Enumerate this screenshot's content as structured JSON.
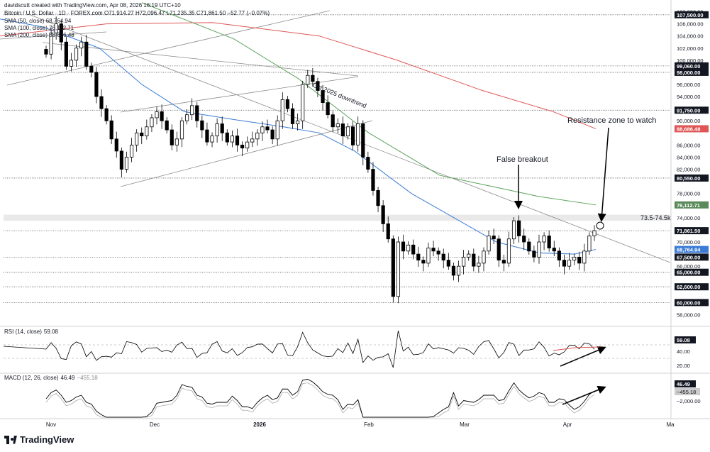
{
  "header": {
    "created_by": "davidscutt created with TradingView.com, Apr 08, 2026 16:19 UTC+10",
    "symbol_line": "Bitcoin / U.S. Dollar · 1D · FOREX.com",
    "ohlc": "O71,914.27 H72,096.47 L71,235.35 C71,861.50 −52.77 (−0.07%)",
    "sma50": "SMA (50, close) 68,764.94",
    "sma100": "SMA (100, close) 76,112.71",
    "sma200": "SMA (200, close) 88,686.48"
  },
  "colors": {
    "candle": "#000000",
    "sma50": "#3a7bd5",
    "sma100": "#5aa35a",
    "sma200": "#e05555",
    "trendline": "#8a8a8a",
    "arrow": "#000000"
  },
  "annotations": {
    "downtrend": "Oct 2025 downtrend",
    "false_breakout": "False breakout",
    "resistance": "Resistance zone to watch",
    "zone": "73.5-74.5k"
  },
  "price_axis": {
    "ticks": [
      "108,000.00",
      "106,000.00",
      "104,000.00",
      "102,000.00",
      "100,000.00",
      "96,000.00",
      "94,000.00",
      "90,000.00",
      "86,000.00",
      "84,000.00",
      "82,000.00",
      "78,000.00",
      "74,000.00",
      "70,000.00",
      "66,000.00",
      "58,000.00"
    ],
    "tick_values": [
      108000,
      106000,
      104000,
      102000,
      100000,
      96000,
      94000,
      90000,
      86000,
      84000,
      82000,
      78000,
      74000,
      70000,
      66000,
      58000
    ],
    "levels": [
      {
        "label": "107,500.00",
        "value": 107500,
        "style": "dark"
      },
      {
        "label": "99,060.00",
        "value": 99060,
        "style": "dark"
      },
      {
        "label": "98,000.00",
        "value": 98000,
        "style": "dark"
      },
      {
        "label": "91,750.00",
        "value": 91750,
        "style": "dark"
      },
      {
        "label": "88,686.48",
        "value": 88686,
        "style": "red"
      },
      {
        "label": "80,550.00",
        "value": 80550,
        "style": "dark"
      },
      {
        "label": "76,112.71",
        "value": 76112,
        "style": "green"
      },
      {
        "label": "71,861.50",
        "value": 71861,
        "style": "dark"
      },
      {
        "label": "68,764.94",
        "value": 68764,
        "style": "blue"
      },
      {
        "label": "67,500.00",
        "value": 67500,
        "style": "dark"
      },
      {
        "label": "65,000.00",
        "value": 65000,
        "style": "dark"
      },
      {
        "label": "62,600.00",
        "value": 62600,
        "style": "dark"
      },
      {
        "label": "60,000.00",
        "value": 60000,
        "style": "dark"
      }
    ]
  },
  "time_axis": [
    "Nov",
    "Dec",
    "2026",
    "Feb",
    "Mar",
    "Apr",
    "Ma"
  ],
  "rsi": {
    "label": "RSI (14, close)",
    "value": "59.08",
    "ticks": [
      "40.00",
      "20.00"
    ],
    "badge": "59.08"
  },
  "macd": {
    "label": "MACD (12, 26, close)",
    "value1": "46.49",
    "value2": "−455.18",
    "ticks": [
      "−2,000.00"
    ],
    "badge1": "46.49",
    "badge2": "−455.18"
  },
  "brand": "TradingView",
  "chart_data": {
    "type": "candlestick",
    "symbol": "Bitcoin / U.S. Dollar",
    "ylim": [
      57000,
      109000
    ],
    "close_approx": [
      101000,
      104500,
      106000,
      103000,
      99000,
      100000,
      102000,
      103000,
      99000,
      98000,
      94000,
      92000,
      90000,
      87000,
      85000,
      82000,
      84000,
      86000,
      88000,
      87500,
      89000,
      90500,
      91500,
      90000,
      88500,
      86000,
      87000,
      90000,
      91000,
      92500,
      90000,
      88500,
      86500,
      87500,
      89500,
      88000,
      86500,
      87500,
      86000,
      85500,
      86500,
      87000,
      88000,
      89000,
      88500,
      87000,
      90000,
      93500,
      92000,
      89500,
      90000,
      96000,
      97500,
      96500,
      95000,
      93000,
      91000,
      89000,
      89500,
      87500,
      89000,
      86000,
      89500,
      84000,
      82000,
      78500,
      76000,
      73000,
      70500,
      61000,
      70000,
      68500,
      69500,
      68000,
      67000,
      66500,
      69000,
      68500,
      68000,
      67000,
      66000,
      64500,
      66000,
      67500,
      68000,
      66000,
      66500,
      68500,
      71000,
      70500,
      67000,
      66500,
      70500,
      73500,
      71000,
      70000,
      68500,
      67500,
      70000,
      71000,
      69000,
      68500,
      67000,
      66000,
      67000,
      67500,
      66500,
      68500,
      71000,
      71861
    ],
    "sma50_points": [
      [
        0,
        106800
      ],
      [
        60,
        105500
      ],
      [
        140,
        102000
      ],
      [
        200,
        96000
      ],
      [
        260,
        91500
      ],
      [
        330,
        90200
      ],
      [
        400,
        89000
      ],
      [
        450,
        88000
      ],
      [
        500,
        85000
      ],
      [
        580,
        78000
      ],
      [
        640,
        74000
      ],
      [
        700,
        70000
      ],
      [
        760,
        68200
      ],
      [
        810,
        68000
      ],
      [
        840,
        68764
      ]
    ],
    "sma100_points": [
      [
        200,
        109500
      ],
      [
        330,
        103500
      ],
      [
        420,
        97000
      ],
      [
        520,
        88000
      ],
      [
        620,
        81000
      ],
      [
        700,
        79000
      ],
      [
        760,
        77500
      ],
      [
        840,
        76112
      ]
    ],
    "sma200_points": [
      [
        0,
        104000
      ],
      [
        150,
        106000
      ],
      [
        300,
        106200
      ],
      [
        450,
        104000
      ],
      [
        560,
        100000
      ],
      [
        680,
        95000
      ],
      [
        780,
        91500
      ],
      [
        840,
        88686
      ]
    ]
  }
}
